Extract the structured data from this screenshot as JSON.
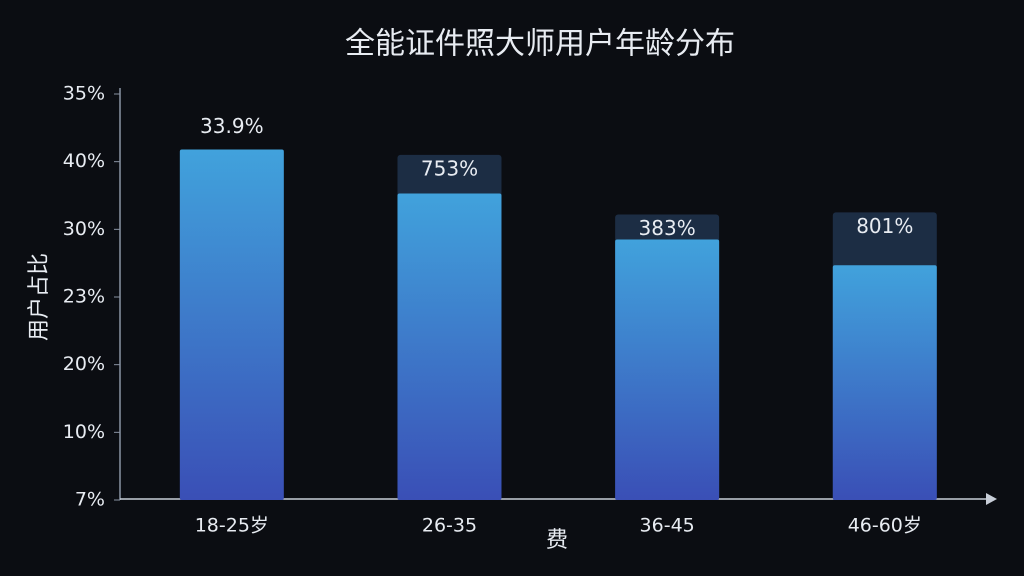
{
  "chart_data": {
    "type": "bar",
    "title": "全能证件照大师用户年龄分布",
    "y_label": "用户占比",
    "x_label": "费",
    "categories": [
      "18-25岁",
      "26-35",
      "36-45",
      "46-60岁"
    ],
    "values": [
      5.18,
      4.53,
      3.85,
      3.47
    ],
    "value_labels": [
      "33.9%",
      "753%",
      "383%",
      "801%"
    ],
    "cap_values": [
      null,
      5.1,
      4.22,
      4.25
    ],
    "color": "#3f8fd6",
    "cap_color": "#1c2d44",
    "ylim": [
      0,
      6
    ],
    "yticks": [
      {
        "value": 0,
        "label": "7%"
      },
      {
        "value": 1,
        "label": "10%"
      },
      {
        "value": 2,
        "label": "20%"
      },
      {
        "value": 3,
        "label": "23%"
      },
      {
        "value": 4,
        "label": "30%"
      },
      {
        "value": 5,
        "label": "40%"
      },
      {
        "value": 6,
        "label": "35%"
      }
    ],
    "grid": false
  }
}
